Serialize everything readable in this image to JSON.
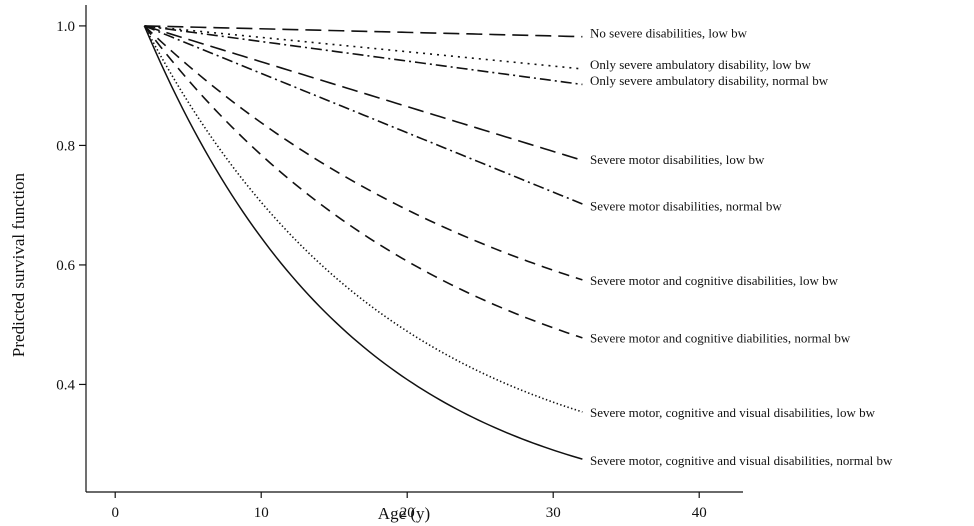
{
  "chart_data": {
    "type": "line",
    "xlabel": "Age (y)",
    "ylabel": "Predicted survival function",
    "xlim": [
      -2,
      43
    ],
    "ylim": [
      0.22,
      1.035
    ],
    "x_ticks": [
      0,
      10,
      20,
      30,
      40
    ],
    "y_ticks": [
      0.4,
      0.6,
      0.8,
      1.0
    ],
    "x_tick_labels": [
      "0",
      "10",
      "20",
      "30",
      "40"
    ],
    "y_tick_labels": [
      "0.4",
      "0.6",
      "0.8",
      "1.0"
    ],
    "grid": false,
    "legend": "inline-right",
    "series": [
      {
        "name": "No severe disabilities, low bw",
        "dash": "long-dash",
        "start": [
          2,
          1.0
        ],
        "end": [
          32,
          0.982
        ],
        "shape": 1.0
      },
      {
        "name": "Only severe ambulatory disability, low bw",
        "dash": "dotted",
        "start": [
          2,
          1.0
        ],
        "end": [
          32,
          0.928
        ],
        "shape": 1.0
      },
      {
        "name": "Only severe ambulatory disability, normal bw",
        "dash": "dash-dot",
        "start": [
          2,
          1.0
        ],
        "end": [
          32,
          0.902
        ],
        "shape": 1.0
      },
      {
        "name": "Severe motor disabilities, low bw",
        "dash": "long-dash",
        "start": [
          2,
          1.0
        ],
        "end": [
          32,
          0.775
        ],
        "shape": 1.0
      },
      {
        "name": "Severe motor disabilities, normal bw",
        "dash": "dash-dot",
        "start": [
          2,
          1.0
        ],
        "end": [
          32,
          0.702
        ],
        "shape": 1.0
      },
      {
        "name": "Severe motor and cognitive disabilities, low bw",
        "dash": "dashed",
        "start": [
          2,
          1.0
        ],
        "end": [
          32,
          0.575
        ],
        "shape": 1.1
      },
      {
        "name": "Severe motor and cognitive diabilities, normal bw",
        "dash": "dashed",
        "start": [
          2,
          1.0
        ],
        "end": [
          32,
          0.478
        ],
        "shape": 1.4
      },
      {
        "name": "Severe motor, cognitive and visual disabilities, low bw",
        "dash": "fine-dotted",
        "start": [
          2,
          1.0
        ],
        "end": [
          32,
          0.354
        ],
        "shape": 1.8
      },
      {
        "name": "Severe motor, cognitive and visual disabilities, normal bw",
        "dash": "solid",
        "start": [
          2,
          1.0
        ],
        "end": [
          32,
          0.275
        ],
        "shape": 2.1
      }
    ],
    "label_y": [
      0.987,
      0.935,
      0.908,
      0.776,
      0.698,
      0.573,
      0.477,
      0.352,
      0.272
    ]
  }
}
